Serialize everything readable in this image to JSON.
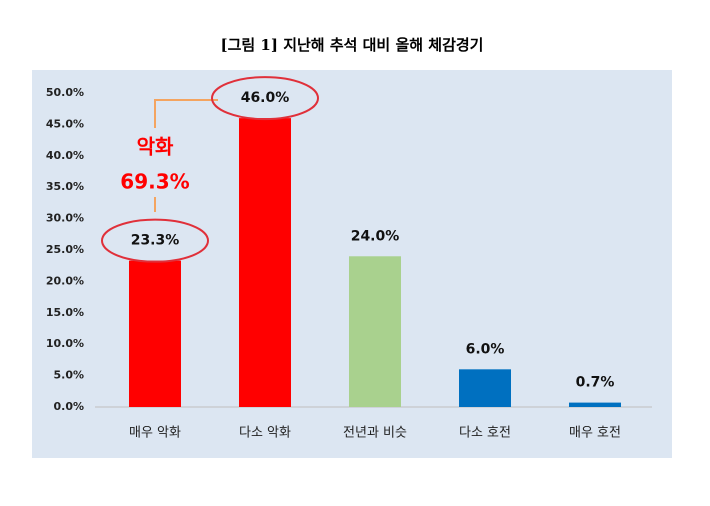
{
  "chart_data": {
    "type": "bar",
    "title": "[그림 1] 지난해 추석 대비 올해 체감경기",
    "categories": [
      "매우 악화",
      "다소 악화",
      "전년과 비슷",
      "다소 호전",
      "매우 호전"
    ],
    "values": [
      23.3,
      46.0,
      24.0,
      6.0,
      0.7
    ],
    "value_labels": [
      "23.3%",
      "46.0%",
      "24.0%",
      "6.0%",
      "0.7%"
    ],
    "colors": [
      "#ff0000",
      "#ff0000",
      "#a9d18e",
      "#0070c0",
      "#0070c0"
    ],
    "ylim": [
      0,
      50
    ],
    "yticks": [
      {
        "value": 0,
        "label": "0.0%"
      },
      {
        "value": 5,
        "label": "5.0%"
      },
      {
        "value": 10,
        "label": "10.0%"
      },
      {
        "value": 15,
        "label": "15.0%"
      },
      {
        "value": 20,
        "label": "20.0%"
      },
      {
        "value": 25,
        "label": "25.0%"
      },
      {
        "value": 30,
        "label": "30.0%"
      },
      {
        "value": 35,
        "label": "35.0%"
      },
      {
        "value": 40,
        "label": "40.0%"
      },
      {
        "value": 45,
        "label": "45.0%"
      },
      {
        "value": 50,
        "label": "50.0%"
      }
    ],
    "grid": false,
    "annotation": {
      "label": "악화",
      "value_label": "69.3%"
    }
  }
}
